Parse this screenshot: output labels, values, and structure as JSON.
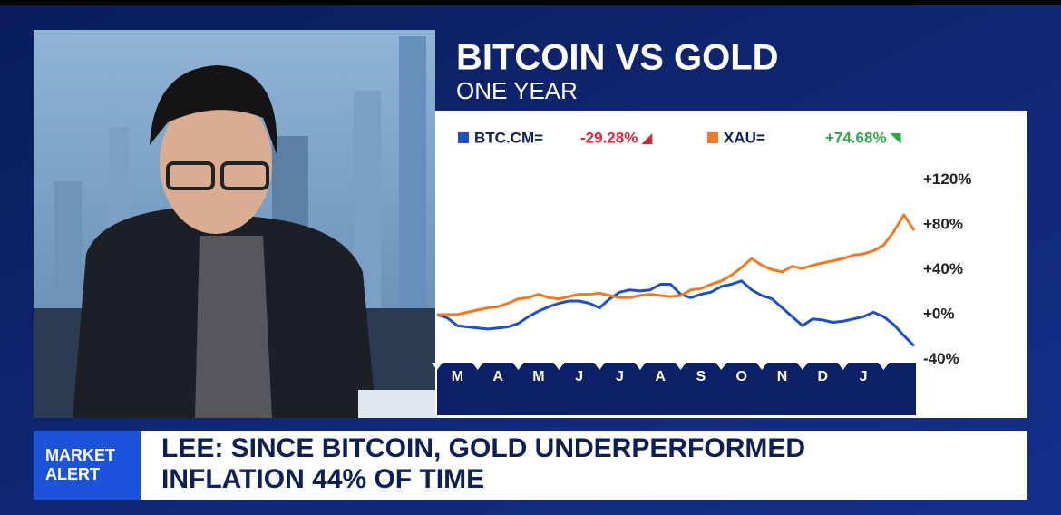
{
  "chart_data": {
    "type": "line",
    "title": "BITCOIN VS GOLD",
    "subtitle": "ONE YEAR",
    "categories": [
      null,
      null,
      "M",
      null,
      null,
      null,
      "A",
      null,
      null,
      null,
      "M",
      null,
      null,
      null,
      "J",
      null,
      null,
      null,
      "J",
      null,
      null,
      null,
      "A",
      null,
      null,
      null,
      "S",
      null,
      null,
      null,
      "O",
      null,
      null,
      null,
      "N",
      null,
      null,
      null,
      "D",
      null,
      null,
      null,
      "J",
      null,
      null,
      null,
      null,
      null
    ],
    "series": [
      {
        "name": "BTC.CM=",
        "legend_value": "-29.28%",
        "color": "#1f4fc4",
        "values": [
          0,
          -3,
          -10,
          -11,
          -12,
          -13,
          -12,
          -11,
          -8,
          -2,
          3,
          7,
          10,
          12,
          12,
          10,
          6,
          14,
          20,
          22,
          21,
          22,
          27,
          27,
          18,
          15,
          18,
          20,
          25,
          27,
          30,
          22,
          17,
          14,
          6,
          -2,
          -10,
          -4,
          -5,
          -7,
          -6,
          -4,
          -2,
          2,
          -2,
          -9,
          -19,
          -28
        ]
      },
      {
        "name": "XAU=",
        "legend_value": "+74.68%",
        "color": "#f07a22",
        "values": [
          0,
          0,
          0,
          2,
          4,
          6,
          7,
          10,
          14,
          15,
          18,
          15,
          14,
          16,
          18,
          18,
          19,
          17,
          15,
          15,
          17,
          18,
          17,
          16,
          17,
          22,
          23,
          27,
          30,
          35,
          42,
          50,
          44,
          40,
          38,
          43,
          41,
          44,
          46,
          48,
          50,
          53,
          54,
          57,
          62,
          74,
          89,
          75
        ]
      }
    ],
    "ylim": [
      -43,
      131
    ],
    "yticks": [
      {
        "value": 120,
        "label": "+120%"
      },
      {
        "value": 80,
        "label": "+80%"
      },
      {
        "value": 40,
        "label": "+40%"
      },
      {
        "value": 0,
        "label": "+0%"
      },
      {
        "value": -40,
        "label": "-40%"
      }
    ],
    "grid": false
  },
  "banner": {
    "tag_line1": "MARKET",
    "tag_line2": "ALERT",
    "headline_line1": "LEE: SINCE BITCOIN, GOLD UNDERPERFORMED",
    "headline_line2": "INFLATION 44% OF TIME"
  }
}
